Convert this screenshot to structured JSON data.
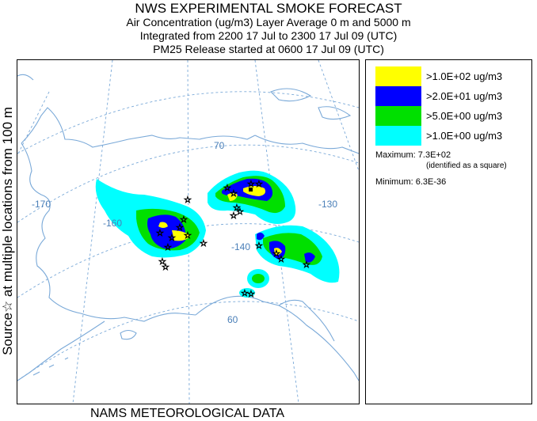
{
  "header": {
    "title": "NWS EXPERIMENTAL SMOKE FORECAST",
    "line2": "Air Concentration (ug/m3) Layer Average    0 m and  5000 m",
    "line3": "Integrated from 2200 17 Jul to 2300 17 Jul 09 (UTC)",
    "line4": "PM25 Release started at 0600 17 Jul 09 (UTC)"
  },
  "side_label": "Source☆ at multiple locations    from   100 m",
  "footer": "NAMS METEOROLOGICAL DATA",
  "map": {
    "graticule_labels": {
      "lon_170": "-170",
      "lon_160": "-160",
      "lon_140": "-140",
      "lon_130": "-130",
      "lat_70": "70",
      "lat_60": "60"
    }
  },
  "legend": {
    "items": [
      {
        "label": ">1.0E+02 ug/m3",
        "color": "#ffff00"
      },
      {
        "label": ">2.0E+01 ug/m3",
        "color": "#0000ff"
      },
      {
        "label": ">5.0E+00 ug/m3",
        "color": "#00e000"
      },
      {
        "label": ">1.0E+00 ug/m3",
        "color": "#00ffff"
      }
    ],
    "maximum_label": "Maximum: 7.3E+02",
    "maximum_note": "(identified as a square)",
    "minimum_label": "Minimum: 6.3E-36"
  },
  "colors": {
    "coast": "#7aa9d8",
    "graticule": "#7aa9d8",
    "level1": "#00ffff",
    "level2": "#00e000",
    "level3": "#0000ff",
    "level4": "#ffff00"
  }
}
